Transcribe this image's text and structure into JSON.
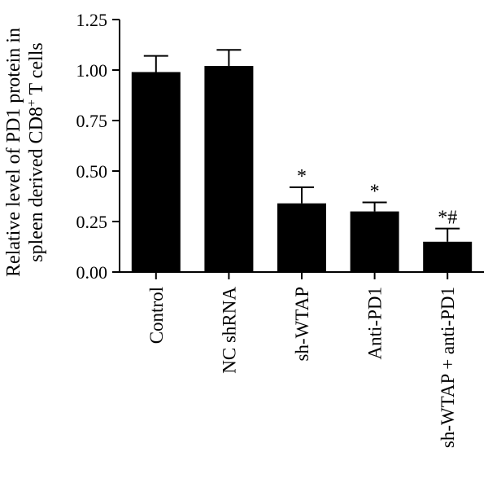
{
  "chart_data": {
    "type": "bar",
    "title": "",
    "ylabel_line1": "Relative level of PD1 protein in",
    "ylabel_line2_prefix": "spleen derived CD8",
    "ylabel_line2_sup": "+",
    "ylabel_line2_suffix": " T cells",
    "xlabel": "",
    "ylim": [
      0,
      1.25
    ],
    "yticks": [
      "0.00",
      "0.25",
      "0.50",
      "0.75",
      "1.00",
      "1.25"
    ],
    "categories": [
      "Control",
      "NC shRNA",
      "sh-WTAP",
      "Anti-PD1",
      "sh-WTAP + anti-PD1"
    ],
    "values": [
      0.99,
      1.02,
      0.34,
      0.3,
      0.15
    ],
    "errors": [
      0.08,
      0.08,
      0.08,
      0.045,
      0.065
    ],
    "annotations": [
      "",
      "",
      "*",
      "*",
      "*#"
    ],
    "bar_color": "#000000",
    "grid": false
  }
}
